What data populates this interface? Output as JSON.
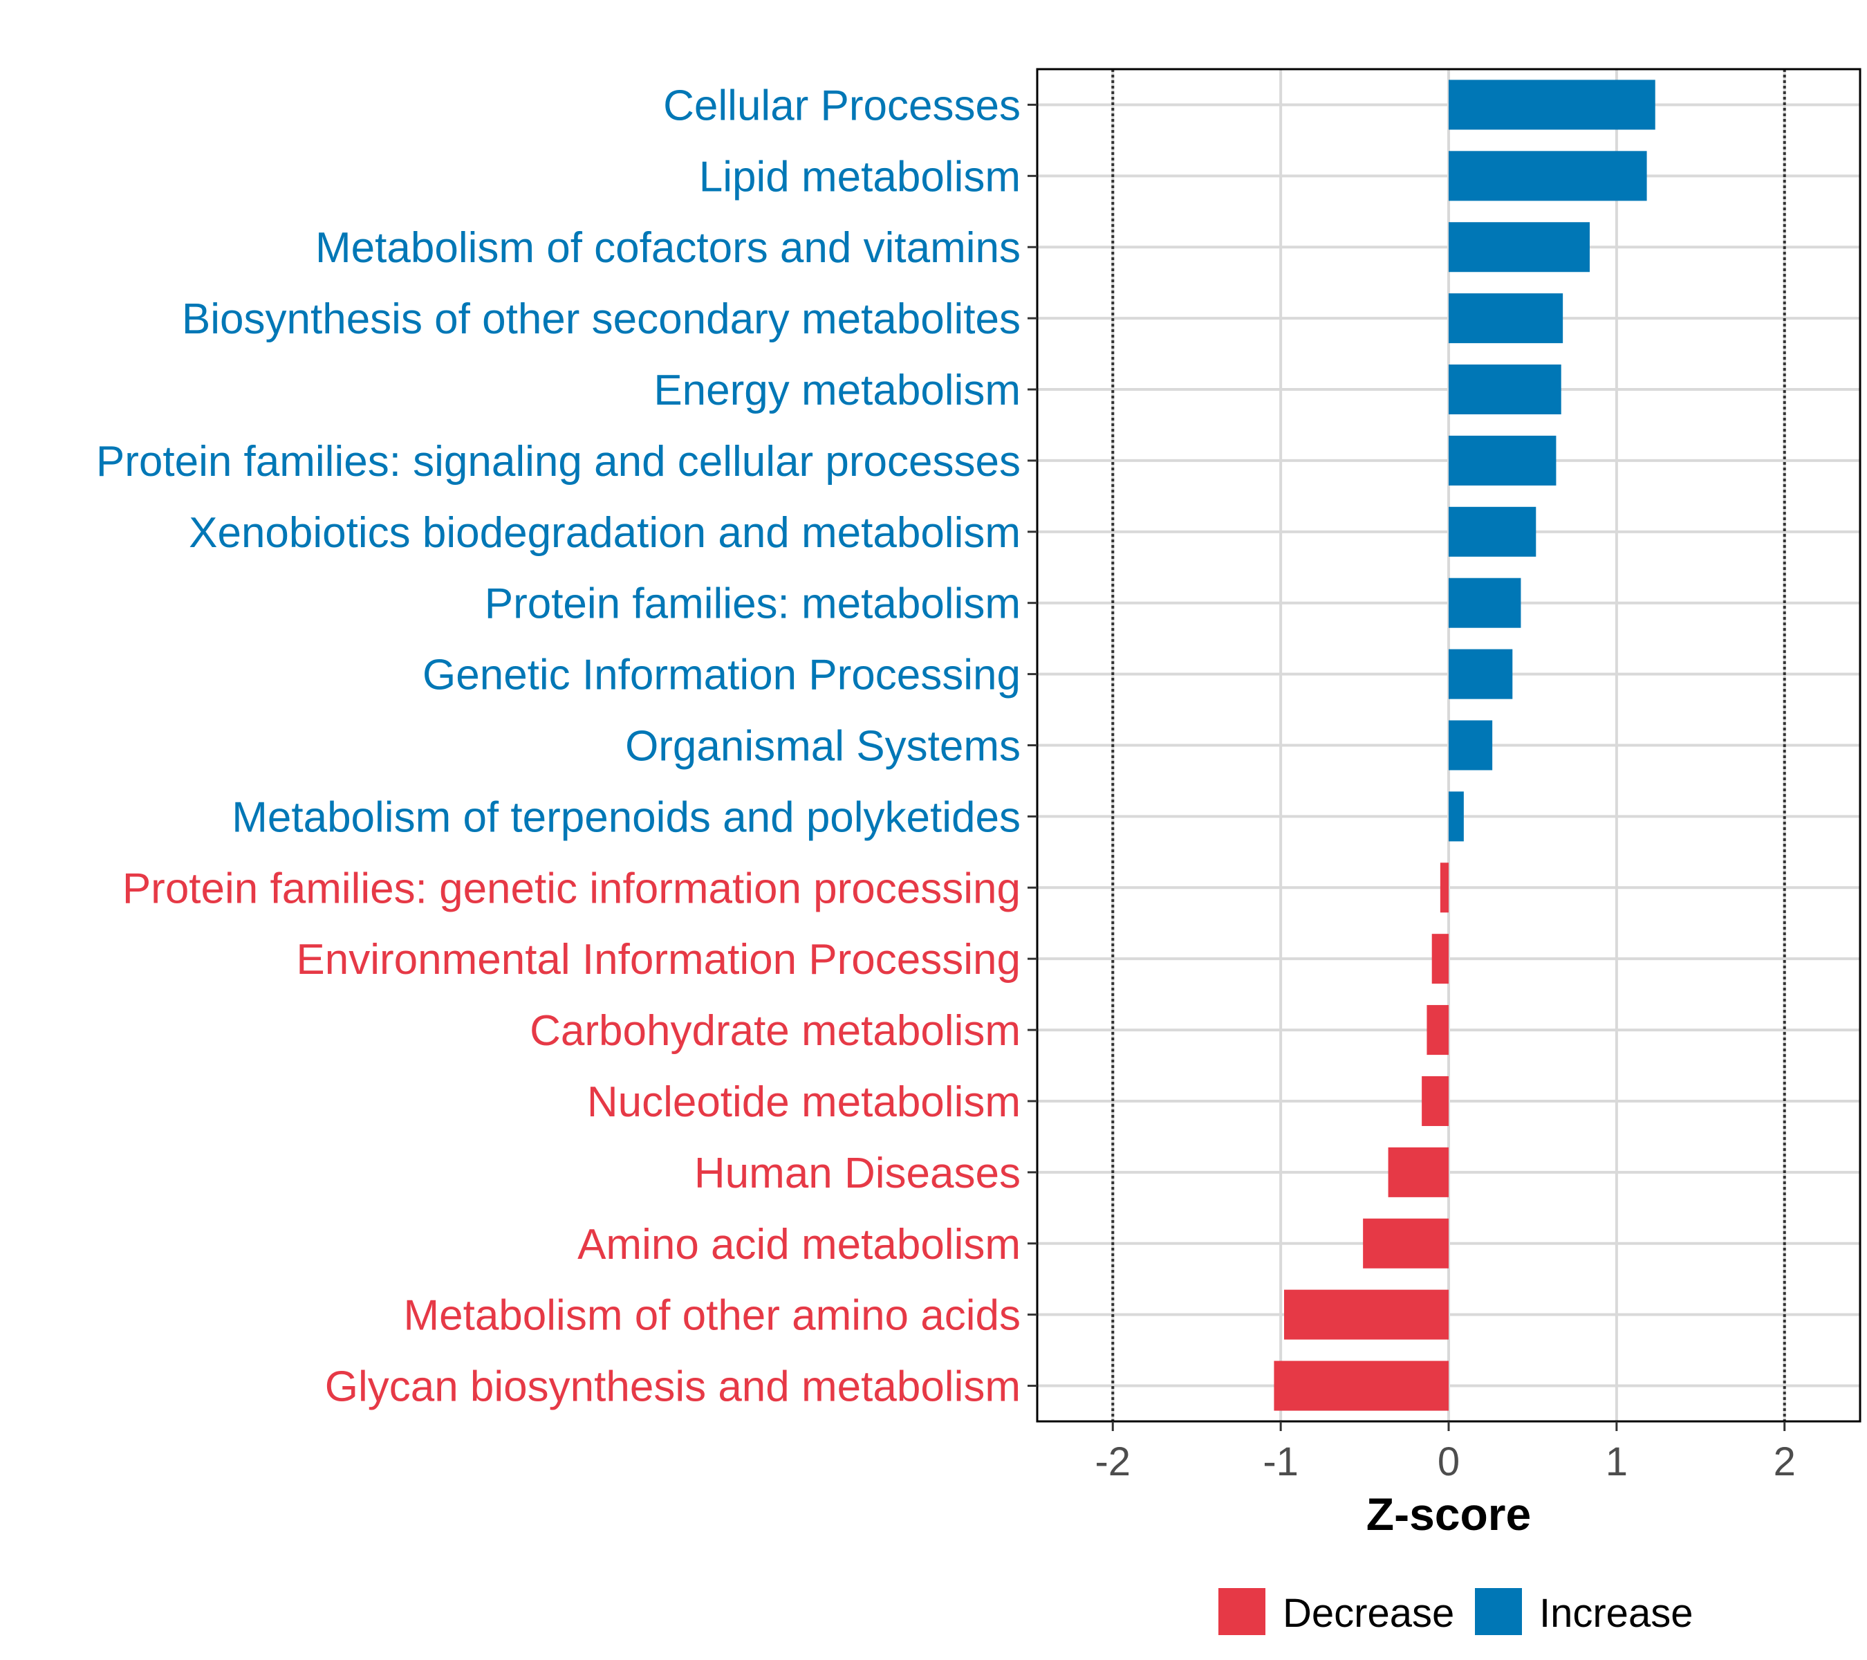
{
  "chart_data": {
    "type": "bar",
    "orientation": "horizontal",
    "title": "",
    "xlabel": "Z-score",
    "ylabel": "",
    "xlim": [
      -2.45,
      2.45
    ],
    "xticks": [
      -2,
      -1,
      0,
      1,
      2
    ],
    "xtick_labels": [
      "-2",
      "-1",
      "0",
      "1",
      "2"
    ],
    "reference_lines": [
      -2,
      2
    ],
    "grid": true,
    "colors": {
      "Decrease": "#E63946",
      "Increase": "#0077B6"
    },
    "legend": {
      "position": "bottom",
      "entries": [
        {
          "label": "Decrease",
          "color": "#E63946"
        },
        {
          "label": "Increase",
          "color": "#0077B6"
        }
      ]
    },
    "categories": [
      "Cellular Processes",
      "Lipid metabolism",
      "Metabolism of cofactors and vitamins",
      "Biosynthesis of other secondary metabolites",
      "Energy metabolism",
      "Protein families: signaling and cellular processes",
      "Xenobiotics biodegradation and metabolism",
      "Protein families: metabolism",
      "Genetic Information Processing",
      "Organismal Systems",
      "Metabolism of terpenoids and polyketides",
      "Protein families: genetic information processing",
      "Environmental Information Processing",
      "Carbohydrate metabolism",
      "Nucleotide metabolism",
      "Human Diseases",
      "Amino acid metabolism",
      "Metabolism of other amino acids",
      "Glycan biosynthesis and metabolism"
    ],
    "values": [
      1.23,
      1.18,
      0.84,
      0.68,
      0.67,
      0.64,
      0.52,
      0.43,
      0.38,
      0.26,
      0.09,
      -0.05,
      -0.1,
      -0.13,
      -0.16,
      -0.36,
      -0.51,
      -0.98,
      -1.04
    ],
    "groups": [
      "Increase",
      "Increase",
      "Increase",
      "Increase",
      "Increase",
      "Increase",
      "Increase",
      "Increase",
      "Increase",
      "Increase",
      "Increase",
      "Decrease",
      "Decrease",
      "Decrease",
      "Decrease",
      "Decrease",
      "Decrease",
      "Decrease",
      "Decrease"
    ]
  }
}
